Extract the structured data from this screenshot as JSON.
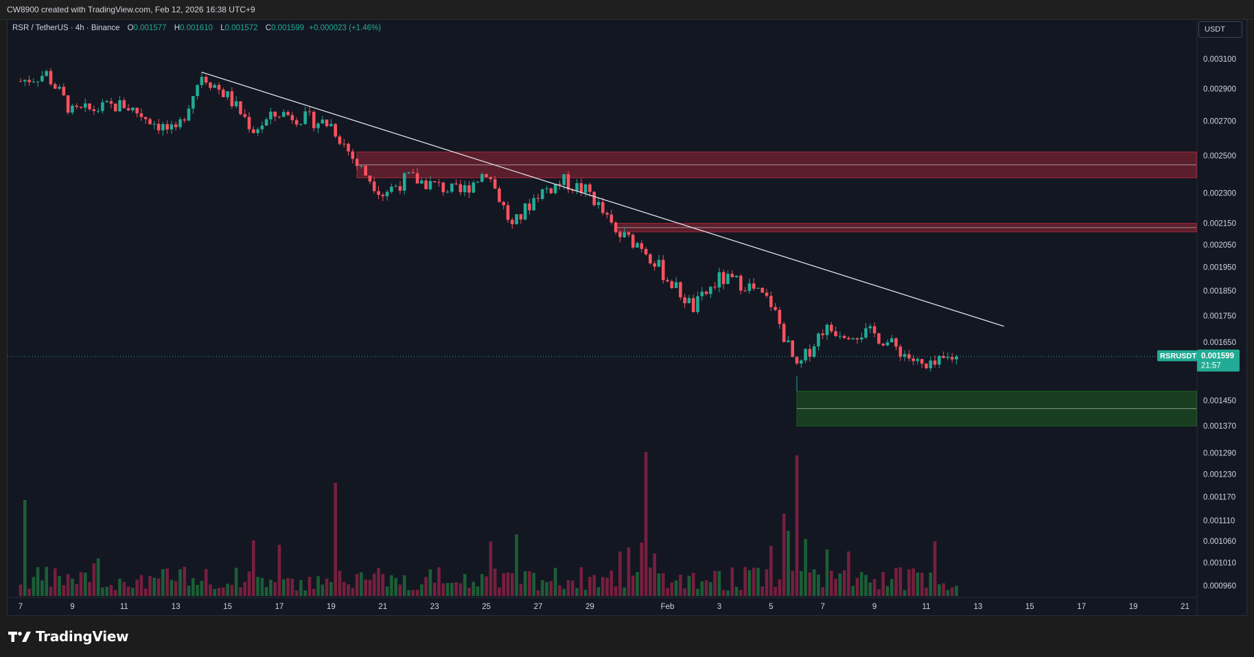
{
  "header": {
    "caption": "CW8900 created with TradingView.com, Feb 12, 2026 16:38 UTC+9"
  },
  "legend": {
    "symbol": "RSR / TetherUS · 4h · Binance",
    "open_label": "O",
    "open": "0.001577",
    "high_label": "H",
    "high": "0.001610",
    "low_label": "L",
    "low": "0.001572",
    "close_label": "C",
    "close": "0.001599",
    "change": "+0.000023 (+1.46%)"
  },
  "price_axis": {
    "unit_button": "USDT",
    "current_tag": {
      "symbol": "RSRUSDT",
      "price": "0.001599",
      "countdown": "21:57"
    }
  },
  "brand": {
    "name": "TradingView"
  },
  "colors": {
    "up": "#22ab94",
    "down": "#f7525f",
    "background": "#131722",
    "resistance_zone": "#b2283a",
    "support_zone": "#1b5e20",
    "trendline": "#e0e3eb"
  },
  "chart_data": {
    "type": "candlestick",
    "title": "RSR / TetherUS · 4h · Binance",
    "interval": "4h",
    "scale": "log",
    "xlabel": "",
    "ylabel": "",
    "x_ticks": [
      "7",
      "9",
      "11",
      "13",
      "15",
      "17",
      "19",
      "21",
      "23",
      "25",
      "27",
      "29",
      "Feb",
      "3",
      "5",
      "7",
      "9",
      "11",
      "13",
      "15",
      "17",
      "19",
      "21"
    ],
    "y_ticks": [
      "0.003100",
      "0.002900",
      "0.002700",
      "0.002500",
      "0.002300",
      "0.002150",
      "0.002050",
      "0.001950",
      "0.001850",
      "0.001750",
      "0.001650",
      "0.001450",
      "0.001370",
      "0.001290",
      "0.001230",
      "0.001170",
      "0.001110",
      "0.001060",
      "0.001010",
      "0.000960"
    ],
    "ylim": [
      0.00092,
      0.0033
    ],
    "price_path": [
      [
        "Jan 7",
        0.00295
      ],
      [
        "Jan 8",
        0.003
      ],
      [
        "Jan 9",
        0.00275
      ],
      [
        "Jan 11",
        0.0028
      ],
      [
        "Jan 13",
        0.00262
      ],
      [
        "Jan 14",
        0.003
      ],
      [
        "Jan 15",
        0.00285
      ],
      [
        "Jan 16",
        0.00265
      ],
      [
        "Jan 17",
        0.00275
      ],
      [
        "Jan 19",
        0.00268
      ],
      [
        "Jan 20",
        0.00245
      ],
      [
        "Jan 21",
        0.0023
      ],
      [
        "Jan 22",
        0.00238
      ],
      [
        "Jan 24",
        0.0023
      ],
      [
        "Jan 25",
        0.00242
      ],
      [
        "Jan 26",
        0.00213
      ],
      [
        "Jan 27",
        0.0023
      ],
      [
        "Jan 28",
        0.00236
      ],
      [
        "Jan 29",
        0.0023
      ],
      [
        "Jan 30",
        0.0021
      ],
      [
        "Jan 31",
        0.00205
      ],
      [
        "Feb 1",
        0.0019
      ],
      [
        "Feb 2",
        0.00178
      ],
      [
        "Feb 3",
        0.0019
      ],
      [
        "Feb 4",
        0.00188
      ],
      [
        "Feb 5",
        0.0018
      ],
      [
        "Feb 6",
        0.00155
      ],
      [
        "Feb 7",
        0.0017
      ],
      [
        "Feb 9",
        0.00168
      ],
      [
        "Feb 10",
        0.00162
      ],
      [
        "Feb 11",
        0.00155
      ],
      [
        "Feb 12",
        0.001599
      ]
    ],
    "zones": [
      {
        "kind": "resistance",
        "from": "Jan 20",
        "low": 0.00238,
        "high": 0.00252
      },
      {
        "kind": "resistance",
        "from": "Jan 30",
        "low": 0.00211,
        "high": 0.00215
      },
      {
        "kind": "support",
        "from": "Feb 6",
        "low": 0.00137,
        "high": 0.00148
      }
    ],
    "trendline": {
      "from": [
        "Jan 14",
        0.00301
      ],
      "to": [
        "Feb 14",
        0.00171
      ]
    },
    "last_price": 0.001599,
    "volume": {
      "note": "volume histogram, spikes near Jan 19, Feb 1 and Feb 6"
    }
  }
}
